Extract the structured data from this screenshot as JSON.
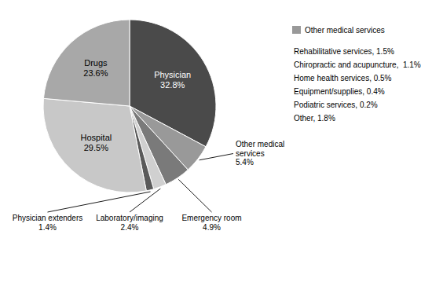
{
  "chart_data": {
    "type": "pie",
    "categories": [
      "Physician",
      "Other medical\nservices",
      "Emergency room",
      "Laboratory/imaging",
      "Physician extenders",
      "Hospital",
      "Drugs"
    ],
    "values": [
      32.8,
      5.4,
      4.9,
      2.4,
      1.4,
      29.5,
      23.6
    ],
    "value_labels": [
      "32.8%",
      "5.4%",
      "4.9%",
      "2.4%",
      "1.4%",
      "29.5%",
      "23.6%"
    ],
    "colors": [
      "#4a4a4a",
      "#999999",
      "#7a7a7a",
      "#d0d0d0",
      "#5a5a5a",
      "#c8c8c8",
      "#a8a8a8"
    ],
    "data_labels": true,
    "legend": "right",
    "annotations": [
      {
        "text": "Other medical services",
        "color": "#999999"
      },
      {
        "text": "Rehabilitative services, 1.5%"
      },
      {
        "text": "Chiropractic and acupuncture,  1.1%"
      },
      {
        "text": "Home health services, 0.5%"
      },
      {
        "text": "Equipment/supplies, 0.4%"
      },
      {
        "text": "Podiatric services, 0.2%"
      },
      {
        "text": "Other, 1.8%"
      }
    ]
  }
}
